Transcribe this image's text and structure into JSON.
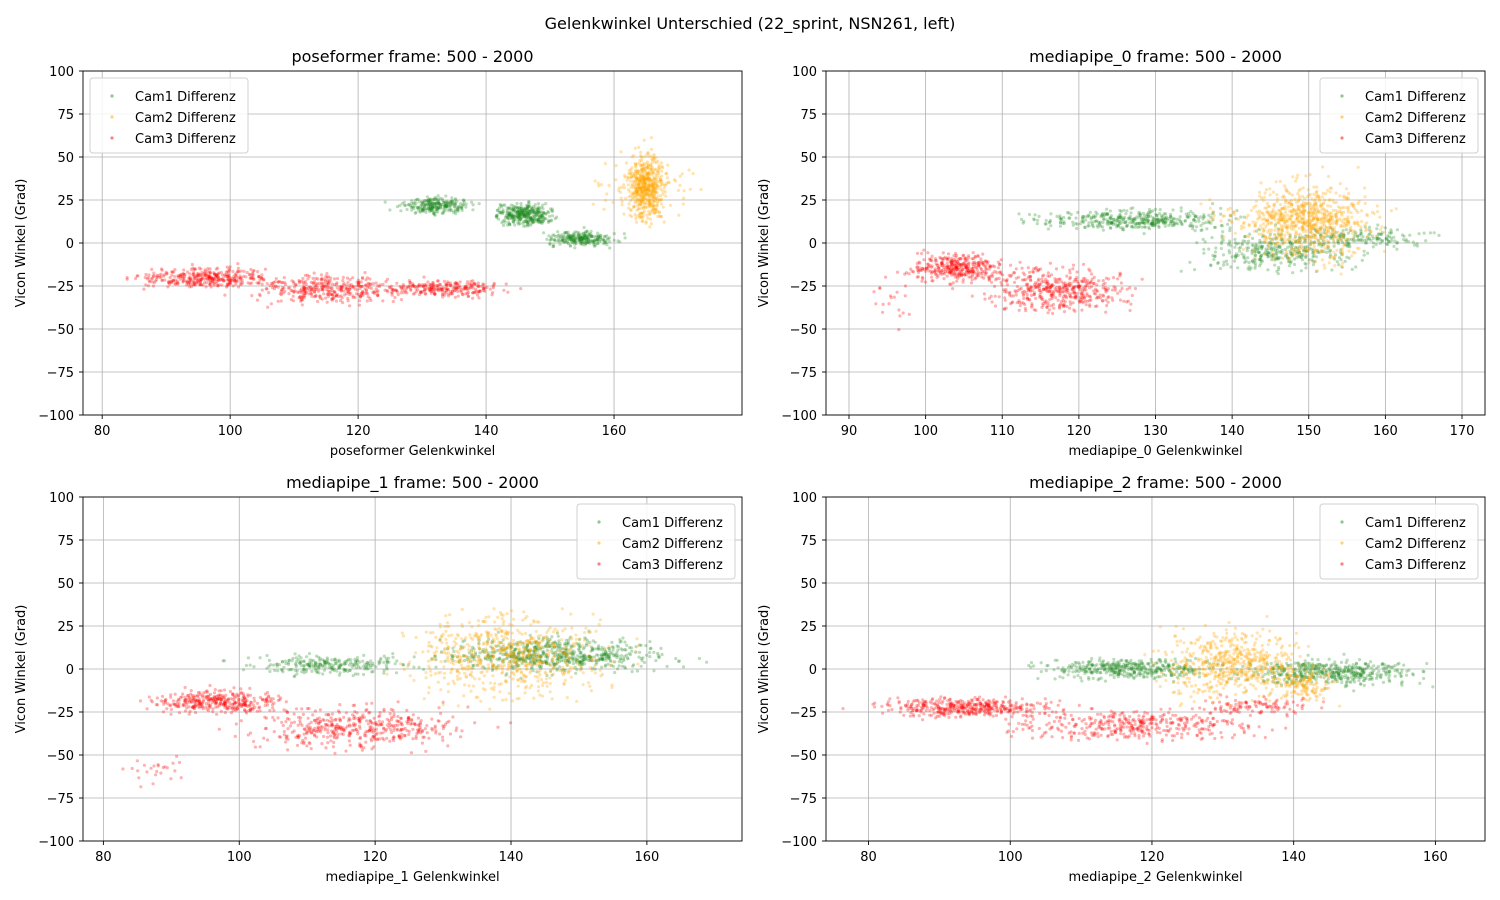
{
  "suptitle": "Gelenkwinkel Unterschied (22_sprint, NSN261, left)",
  "colors": {
    "cam1": "#228b22",
    "cam2": "#ffa500",
    "cam3": "#ff0000"
  },
  "chart_data": [
    {
      "type": "scatter",
      "title": "poseformer frame: 500 - 2000",
      "xlabel": "poseformer Gelenkwinkel",
      "ylabel": "Vicon Winkel (Grad)",
      "xlim": [
        77,
        180
      ],
      "ylim": [
        -100,
        100
      ],
      "xticks": [
        80,
        100,
        120,
        140,
        160
      ],
      "yticks": [
        -100,
        -75,
        -50,
        -25,
        0,
        25,
        50,
        75,
        100
      ],
      "grid": true,
      "legend_position": "upper-left",
      "series": [
        {
          "name": "Cam1 Differenz",
          "color": "#228b22",
          "clusters": [
            {
              "x": [
                125,
                140
              ],
              "y": [
                15,
                28
              ],
              "n": 250
            },
            {
              "x": [
                140,
                152
              ],
              "y": [
                8,
                25
              ],
              "n": 350
            },
            {
              "x": [
                148,
                162
              ],
              "y": [
                -3,
                8
              ],
              "n": 250
            }
          ]
        },
        {
          "name": "Cam2 Differenz",
          "color": "#ffa500",
          "clusters": [
            {
              "x": [
                161,
                169
              ],
              "y": [
                5,
                60
              ],
              "n": 500
            },
            {
              "x": [
                155,
                174
              ],
              "y": [
                10,
                55
              ],
              "n": 100
            }
          ]
        },
        {
          "name": "Cam3 Differenz",
          "color": "#ff0000",
          "clusters": [
            {
              "x": [
                82,
                110
              ],
              "y": [
                -28,
                -12
              ],
              "n": 350
            },
            {
              "x": [
                100,
                130
              ],
              "y": [
                -38,
                -15
              ],
              "n": 350
            },
            {
              "x": [
                120,
                147
              ],
              "y": [
                -33,
                -20
              ],
              "n": 250
            }
          ]
        }
      ]
    },
    {
      "type": "scatter",
      "title": "mediapipe_0 frame: 500 - 2000",
      "xlabel": "mediapipe_0 Gelenkwinkel",
      "ylabel": "Vicon Winkel (Grad)",
      "xlim": [
        87,
        173
      ],
      "ylim": [
        -100,
        100
      ],
      "xticks": [
        90,
        100,
        110,
        120,
        130,
        140,
        150,
        160,
        170
      ],
      "yticks": [
        -100,
        -75,
        -50,
        -25,
        0,
        25,
        50,
        75,
        100
      ],
      "grid": true,
      "legend_position": "upper-right",
      "series": [
        {
          "name": "Cam1 Differenz",
          "color": "#228b22",
          "clusters": [
            {
              "x": [
                110,
                145
              ],
              "y": [
                5,
                22
              ],
              "n": 400
            },
            {
              "x": [
                132,
                160
              ],
              "y": [
                -20,
                12
              ],
              "n": 350
            },
            {
              "x": [
                145,
                168
              ],
              "y": [
                -5,
                12
              ],
              "n": 150
            }
          ]
        },
        {
          "name": "Cam2 Differenz",
          "color": "#ffa500",
          "clusters": [
            {
              "x": [
                140,
                160
              ],
              "y": [
                -20,
                45
              ],
              "n": 600
            },
            {
              "x": [
                132,
                165
              ],
              "y": [
                0,
                30
              ],
              "n": 200
            }
          ]
        },
        {
          "name": "Cam3 Differenz",
          "color": "#ff0000",
          "clusters": [
            {
              "x": [
                96,
                112
              ],
              "y": [
                -25,
                -3
              ],
              "n": 350
            },
            {
              "x": [
                105,
                130
              ],
              "y": [
                -45,
                -10
              ],
              "n": 450
            },
            {
              "x": [
                91,
                100
              ],
              "y": [
                -55,
                -10
              ],
              "n": 20
            }
          ]
        }
      ]
    },
    {
      "type": "scatter",
      "title": "mediapipe_1 frame: 500 - 2000",
      "xlabel": "mediapipe_1 Gelenkwinkel",
      "ylabel": "Vicon Winkel (Grad)",
      "xlim": [
        77,
        174
      ],
      "ylim": [
        -100,
        100
      ],
      "xticks": [
        80,
        100,
        120,
        140,
        160
      ],
      "yticks": [
        -100,
        -75,
        -50,
        -25,
        0,
        25,
        50,
        75,
        100
      ],
      "grid": true,
      "legend_position": "upper-right",
      "series": [
        {
          "name": "Cam1 Differenz",
          "color": "#228b22",
          "clusters": [
            {
              "x": [
                97,
                130
              ],
              "y": [
                -5,
                10
              ],
              "n": 250
            },
            {
              "x": [
                125,
                168
              ],
              "y": [
                -5,
                22
              ],
              "n": 650
            }
          ]
        },
        {
          "name": "Cam2 Differenz",
          "color": "#ffa500",
          "clusters": [
            {
              "x": [
                120,
                160
              ],
              "y": [
                -25,
                40
              ],
              "n": 650
            }
          ]
        },
        {
          "name": "Cam3 Differenz",
          "color": "#ff0000",
          "clusters": [
            {
              "x": [
                84,
                110
              ],
              "y": [
                -28,
                -10
              ],
              "n": 350
            },
            {
              "x": [
                95,
                140
              ],
              "y": [
                -50,
                -18
              ],
              "n": 450
            },
            {
              "x": [
                81,
                95
              ],
              "y": [
                -72,
                -45
              ],
              "n": 25
            }
          ]
        }
      ]
    },
    {
      "type": "scatter",
      "title": "mediapipe_2 frame: 500 - 2000",
      "xlabel": "mediapipe_2 Gelenkwinkel",
      "ylabel": "Vicon Winkel (Grad)",
      "xlim": [
        74,
        167
      ],
      "ylim": [
        -100,
        100
      ],
      "xticks": [
        80,
        100,
        120,
        140,
        160
      ],
      "yticks": [
        -100,
        -75,
        -50,
        -25,
        0,
        25,
        50,
        75,
        100
      ],
      "grid": true,
      "legend_position": "upper-right",
      "series": [
        {
          "name": "Cam1 Differenz",
          "color": "#228b22",
          "clusters": [
            {
              "x": [
                100,
                135
              ],
              "y": [
                -8,
                8
              ],
              "n": 400
            },
            {
              "x": [
                130,
                162
              ],
              "y": [
                -12,
                8
              ],
              "n": 450
            }
          ]
        },
        {
          "name": "Cam2 Differenz",
          "color": "#ffa500",
          "clusters": [
            {
              "x": [
                118,
                145
              ],
              "y": [
                -25,
                30
              ],
              "n": 550
            },
            {
              "x": [
                135,
                148
              ],
              "y": [
                -22,
                5
              ],
              "n": 150
            }
          ]
        },
        {
          "name": "Cam3 Differenz",
          "color": "#ff0000",
          "clusters": [
            {
              "x": [
                78,
                110
              ],
              "y": [
                -30,
                -15
              ],
              "n": 400
            },
            {
              "x": [
                95,
                140
              ],
              "y": [
                -45,
                -20
              ],
              "n": 400
            },
            {
              "x": [
                125,
                145
              ],
              "y": [
                -28,
                -15
              ],
              "n": 100
            }
          ]
        }
      ]
    }
  ]
}
